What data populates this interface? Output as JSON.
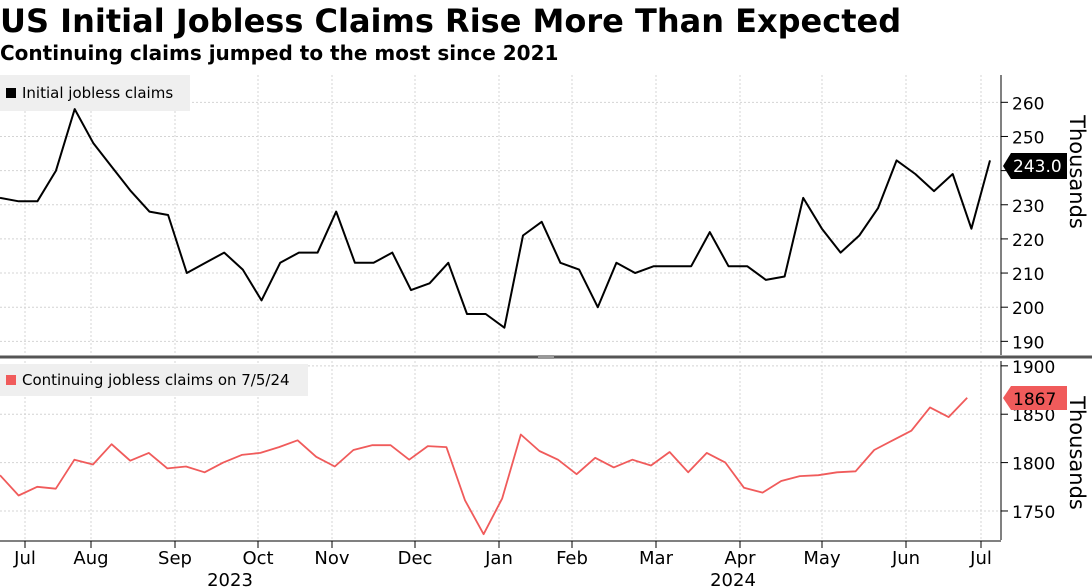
{
  "title": "US Initial Jobless Claims Rise More Than Expected",
  "subtitle": "Continuing claims jumped to the most since 2021",
  "chart_data": [
    {
      "type": "line",
      "series": [
        {
          "name": "Initial jobless claims",
          "color": "#000000",
          "values": [
            232,
            231,
            231,
            240,
            258,
            248,
            241,
            234,
            228,
            227,
            210,
            213,
            216,
            211,
            202,
            213,
            216,
            216,
            228,
            213,
            213,
            216,
            205,
            207,
            213,
            198,
            198,
            194,
            221,
            225,
            213,
            211,
            200,
            213,
            210,
            212,
            212,
            212,
            222,
            212,
            212,
            208,
            209,
            232,
            223,
            216,
            221,
            229,
            243,
            239,
            234,
            239,
            223,
            243
          ]
        }
      ],
      "ylabel": "Thousands",
      "yticks": [
        190,
        200,
        210,
        220,
        230,
        240,
        250,
        260
      ],
      "ylim": [
        186,
        268
      ],
      "last_value_label": "243.0",
      "legend": "top-left",
      "grid": true
    },
    {
      "type": "line",
      "series": [
        {
          "name": "Continuing jobless claims on 7/5/24",
          "color": "#f05b5b",
          "values": [
            1787,
            1766,
            1775,
            1773,
            1803,
            1798,
            1819,
            1802,
            1810,
            1794,
            1796,
            1790,
            1800,
            1808,
            1810,
            1816,
            1823,
            1806,
            1796,
            1813,
            1818,
            1818,
            1803,
            1817,
            1816,
            1761,
            1726,
            1763,
            1829,
            1812,
            1803,
            1788,
            1805,
            1795,
            1803,
            1797,
            1811,
            1790,
            1810,
            1800,
            1774,
            1769,
            1781,
            1786,
            1787,
            1790,
            1791,
            1813,
            1823,
            1833,
            1857,
            1847,
            1867
          ]
        }
      ],
      "ylabel": "Thousands",
      "yticks": [
        1750,
        1800,
        1850,
        1900
      ],
      "ylim": [
        1720,
        1905
      ],
      "last_value_label": "1867",
      "legend": "top-left",
      "grid": true
    }
  ],
  "x_axis": {
    "months": [
      "Jul",
      "Aug",
      "Sep",
      "Oct",
      "Nov",
      "Dec",
      "Jan",
      "Feb",
      "Mar",
      "Apr",
      "May",
      "Jun",
      "Jul"
    ],
    "years": [
      "2023",
      "2024"
    ]
  }
}
